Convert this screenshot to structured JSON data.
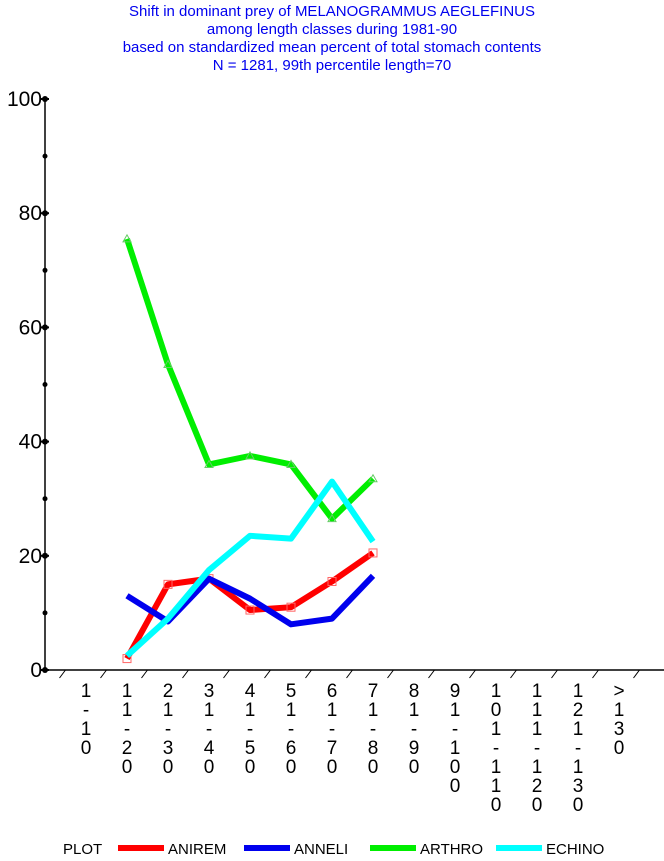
{
  "chart_data": {
    "type": "line",
    "title": [
      "Shift in dominant prey of MELANOGRAMMUS AEGLEFINUS",
      "among length classes during 1981-90",
      "based on standardized mean percent of  total stomach contents",
      "N = 1281, 99th percentile  length=70"
    ],
    "title_color": "#0000ee",
    "categories": [
      "1-10",
      "11-20",
      "21-30",
      "31-40",
      "41-50",
      "51-60",
      "61-70",
      "71-80",
      "81-90",
      "91-100",
      "101-110",
      "111-120",
      "121-130",
      ">130"
    ],
    "ylim": [
      0,
      100
    ],
    "yticks": [
      0,
      20,
      40,
      60,
      80,
      100
    ],
    "legend_title": "PLOT",
    "legend_position": "bottom",
    "series": [
      {
        "name": "ANIREM",
        "color": "#ff0000",
        "marker": "square",
        "values": [
          null,
          2,
          15,
          16,
          10.5,
          11,
          15.5,
          20.5,
          null,
          null,
          null,
          null,
          null,
          null
        ]
      },
      {
        "name": "ANNELI",
        "color": "#0000ee",
        "marker": "none",
        "values": [
          null,
          13,
          8.5,
          16,
          12.5,
          8,
          9,
          16.5,
          null,
          null,
          null,
          null,
          null,
          null
        ]
      },
      {
        "name": "ARTHRO",
        "color": "#00ee00",
        "marker": "triangle",
        "values": [
          null,
          75.5,
          53.5,
          36,
          37.5,
          36,
          26.5,
          33.5,
          null,
          null,
          null,
          null,
          null,
          null
        ]
      },
      {
        "name": "ECHINO",
        "color": "#00ffff",
        "marker": "none",
        "values": [
          null,
          2.5,
          9,
          17.5,
          23.5,
          23,
          33,
          22.5,
          null,
          null,
          null,
          null,
          null,
          null
        ]
      }
    ]
  }
}
